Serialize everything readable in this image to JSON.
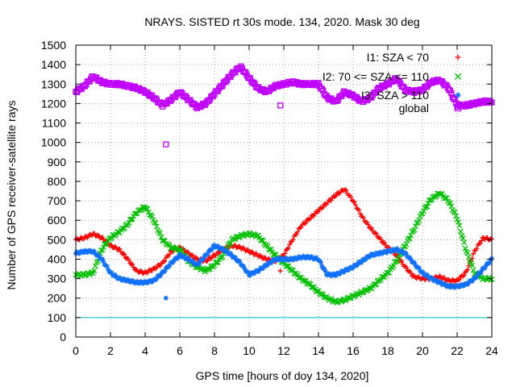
{
  "chart_data": {
    "type": "scatter",
    "title": "NRAYS. SISTED rt 30s mode. 134, 2020. Mask 30 deg",
    "xlabel": "GPS time [hours of doy 134, 2020]",
    "ylabel": "Number of GPS receiver-satellite rays",
    "xlim": [
      0,
      24
    ],
    "ylim": [
      0,
      1500
    ],
    "xticks": [
      "0",
      "2",
      "4",
      "6",
      "8",
      "10",
      "12",
      "14",
      "16",
      "18",
      "20",
      "22",
      "24"
    ],
    "yticks": [
      "0",
      "100",
      "200",
      "300",
      "400",
      "500",
      "600",
      "700",
      "800",
      "900",
      "1000",
      "1100",
      "1200",
      "1300",
      "1400",
      "1500"
    ],
    "grid": true,
    "legend_position": "top-right",
    "reference_line": {
      "y": 100,
      "color": "#00c0c0"
    },
    "series": [
      {
        "name": "I1: SZA < 70",
        "marker": "+",
        "color": "#ff0000",
        "x": [
          0,
          0.5,
          1,
          1.5,
          2,
          2.5,
          3,
          3.5,
          4,
          4.5,
          5,
          5.5,
          6,
          6.5,
          7,
          7.5,
          8,
          8.5,
          9,
          9.5,
          10,
          10.5,
          11,
          11.5,
          12,
          12.5,
          13,
          13.5,
          14,
          14.5,
          15,
          15.5,
          16,
          16.5,
          17,
          17.5,
          18,
          18.5,
          19,
          19.5,
          20,
          20.5,
          21,
          21.5,
          22,
          22.5,
          23,
          23.5,
          24
        ],
        "y": [
          500,
          510,
          530,
          510,
          470,
          450,
          400,
          340,
          330,
          350,
          380,
          440,
          460,
          430,
          400,
          390,
          420,
          450,
          470,
          460,
          440,
          420,
          400,
          390,
          420,
          500,
          570,
          610,
          650,
          690,
          730,
          760,
          700,
          620,
          560,
          510,
          460,
          420,
          360,
          310,
          300,
          300,
          310,
          290,
          290,
          330,
          440,
          510,
          500
        ]
      },
      {
        "name": "I2: 70 <= SZA <= 110",
        "marker": "x",
        "color": "#00c000",
        "x": [
          0,
          0.5,
          1,
          1.5,
          2,
          2.5,
          3,
          3.5,
          4,
          4.5,
          5,
          5.5,
          6,
          6.5,
          7,
          7.5,
          8,
          8.5,
          9,
          9.5,
          10,
          10.5,
          11,
          11.5,
          12,
          12.5,
          13,
          13.5,
          14,
          14.5,
          15,
          15.5,
          16,
          16.5,
          17,
          17.5,
          18,
          18.5,
          19,
          19.5,
          20,
          20.5,
          21,
          21.5,
          22,
          22.5,
          23,
          23.5,
          24
        ],
        "y": [
          320,
          320,
          330,
          450,
          510,
          540,
          580,
          640,
          670,
          600,
          500,
          460,
          450,
          390,
          360,
          340,
          370,
          420,
          500,
          520,
          530,
          520,
          470,
          420,
          380,
          340,
          300,
          270,
          230,
          200,
          180,
          190,
          210,
          230,
          250,
          290,
          330,
          390,
          470,
          550,
          640,
          710,
          740,
          700,
          610,
          450,
          330,
          300,
          300
        ]
      },
      {
        "name": "I3: SZA > 110",
        "marker": "*",
        "color": "#1070ff",
        "x": [
          0,
          0.5,
          1,
          1.5,
          2,
          2.5,
          3,
          3.5,
          4,
          4.5,
          5,
          5.5,
          6,
          6.5,
          7,
          7.5,
          8,
          8.5,
          9,
          9.5,
          10,
          10.5,
          11,
          11.5,
          12,
          12.5,
          13,
          13.5,
          14,
          14.5,
          15,
          15.5,
          16,
          16.5,
          17,
          17.5,
          18,
          18.5,
          19,
          19.5,
          20,
          20.5,
          21,
          21.5,
          22,
          22.5,
          23,
          23.5,
          24
        ],
        "y": [
          430,
          440,
          440,
          400,
          330,
          300,
          290,
          280,
          280,
          290,
          330,
          380,
          420,
          400,
          370,
          420,
          470,
          450,
          420,
          380,
          320,
          340,
          370,
          400,
          400,
          400,
          410,
          410,
          400,
          320,
          320,
          340,
          360,
          390,
          420,
          430,
          440,
          450,
          430,
          380,
          330,
          300,
          280,
          260,
          260,
          270,
          300,
          350,
          400
        ]
      },
      {
        "name": "global",
        "marker": "square",
        "color": "#c000ff",
        "x": [
          0,
          0.5,
          1,
          1.5,
          2,
          2.5,
          3,
          3.5,
          4,
          4.5,
          5,
          5.5,
          6,
          6.5,
          7,
          7.5,
          8,
          8.5,
          9,
          9.5,
          10,
          10.5,
          11,
          11.5,
          12,
          12.5,
          13,
          13.5,
          14,
          14.5,
          15,
          15.5,
          16,
          16.5,
          17,
          17.5,
          18,
          18.5,
          19,
          19.5,
          20,
          20.5,
          21,
          21.5,
          22,
          22.5,
          23,
          23.5,
          24
        ],
        "y": [
          1260,
          1290,
          1340,
          1310,
          1300,
          1300,
          1290,
          1280,
          1260,
          1230,
          1190,
          1220,
          1260,
          1220,
          1180,
          1200,
          1250,
          1300,
          1350,
          1390,
          1330,
          1280,
          1260,
          1290,
          1300,
          1310,
          1300,
          1300,
          1300,
          1230,
          1210,
          1260,
          1240,
          1210,
          1230,
          1280,
          1300,
          1330,
          1270,
          1260,
          1270,
          1310,
          1320,
          1280,
          1190,
          1190,
          1200,
          1210,
          1210
        ]
      }
    ],
    "outliers": [
      {
        "series": "global",
        "x": 5.2,
        "y": 990
      },
      {
        "series": "global",
        "x": 11.8,
        "y": 1190
      },
      {
        "series": "I3: SZA > 110",
        "x": 5.2,
        "y": 200
      },
      {
        "series": "I1: SZA < 70",
        "x": 11.8,
        "y": 340
      }
    ]
  }
}
